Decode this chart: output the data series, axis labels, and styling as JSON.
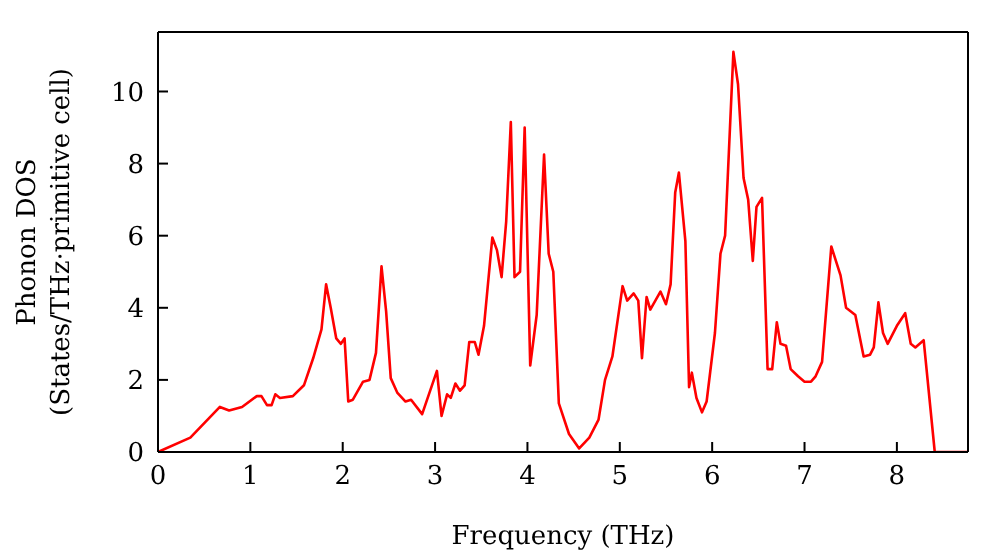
{
  "chart_data": {
    "type": "line",
    "xlabel": "Frequency (THz)",
    "ylabel": "Phonon DOS\n(States/THz·primitive cell)",
    "xlim": [
      0,
      8.77
    ],
    "xticks": [
      0,
      1,
      2,
      3,
      4,
      5,
      6,
      7,
      8
    ],
    "ylim": [
      0,
      11.65
    ],
    "yticks": [
      0,
      2,
      4,
      6,
      8,
      10
    ],
    "marker": "none",
    "line_style": "solid",
    "series": [
      {
        "color": "#ff0000",
        "x": [
          0,
          0.35,
          0.67,
          0.77,
          0.91,
          1.07,
          1.12,
          1.18,
          1.23,
          1.27,
          1.32,
          1.46,
          1.58,
          1.68,
          1.77,
          1.82,
          1.87,
          1.93,
          1.98,
          2.02,
          2.06,
          2.11,
          2.22,
          2.29,
          2.36,
          2.42,
          2.47,
          2.52,
          2.59,
          2.68,
          2.74,
          2.86,
          2.92,
          3.02,
          3.07,
          3.13,
          3.17,
          3.22,
          3.27,
          3.32,
          3.37,
          3.43,
          3.47,
          3.53,
          3.62,
          3.67,
          3.72,
          3.77,
          3.82,
          3.86,
          3.92,
          3.97,
          4.03,
          4.1,
          4.18,
          4.23,
          4.28,
          4.34,
          4.45,
          4.56,
          4.67,
          4.77,
          4.84,
          4.92,
          5.03,
          5.08,
          5.15,
          5.2,
          5.24,
          5.29,
          5.33,
          5.44,
          5.5,
          5.55,
          5.6,
          5.64,
          5.71,
          5.75,
          5.78,
          5.83,
          5.89,
          5.94,
          6.03,
          6.09,
          6.14,
          6.23,
          6.28,
          6.34,
          6.39,
          6.44,
          6.48,
          6.54,
          6.6,
          6.65,
          6.7,
          6.74,
          6.8,
          6.85,
          6.93,
          7.0,
          7.07,
          7.12,
          7.19,
          7.29,
          7.39,
          7.45,
          7.55,
          7.64,
          7.71,
          7.75,
          7.8,
          7.85,
          7.9,
          8.0,
          8.09,
          8.15,
          8.2,
          8.29,
          8.41,
          8.77
        ],
        "values": [
          0,
          0.4,
          1.25,
          1.15,
          1.25,
          1.55,
          1.55,
          1.3,
          1.3,
          1.6,
          1.5,
          1.55,
          1.85,
          2.6,
          3.4,
          4.65,
          4.0,
          3.15,
          3.0,
          3.15,
          1.4,
          1.45,
          1.95,
          2.0,
          2.75,
          5.15,
          3.9,
          2.05,
          1.65,
          1.4,
          1.45,
          1.05,
          1.5,
          2.25,
          1.0,
          1.6,
          1.5,
          1.9,
          1.7,
          1.85,
          3.05,
          3.05,
          2.7,
          3.5,
          5.95,
          5.6,
          4.85,
          6.4,
          9.15,
          4.85,
          5.0,
          9.0,
          2.4,
          3.8,
          8.25,
          5.5,
          5.0,
          1.35,
          0.5,
          0.1,
          0.4,
          0.9,
          2.0,
          2.65,
          4.6,
          4.2,
          4.4,
          4.2,
          2.6,
          4.3,
          3.95,
          4.45,
          4.1,
          4.65,
          7.2,
          7.75,
          5.85,
          1.8,
          2.2,
          1.5,
          1.1,
          1.4,
          3.3,
          5.5,
          6.0,
          11.1,
          10.2,
          7.6,
          7.0,
          5.3,
          6.8,
          7.05,
          2.3,
          2.3,
          3.6,
          3.0,
          2.95,
          2.3,
          2.1,
          1.95,
          1.95,
          2.1,
          2.5,
          5.7,
          4.9,
          4.0,
          3.8,
          2.65,
          2.7,
          2.9,
          4.15,
          3.3,
          3.0,
          3.5,
          3.85,
          3.0,
          2.9,
          3.1,
          0,
          0
        ]
      }
    ]
  }
}
